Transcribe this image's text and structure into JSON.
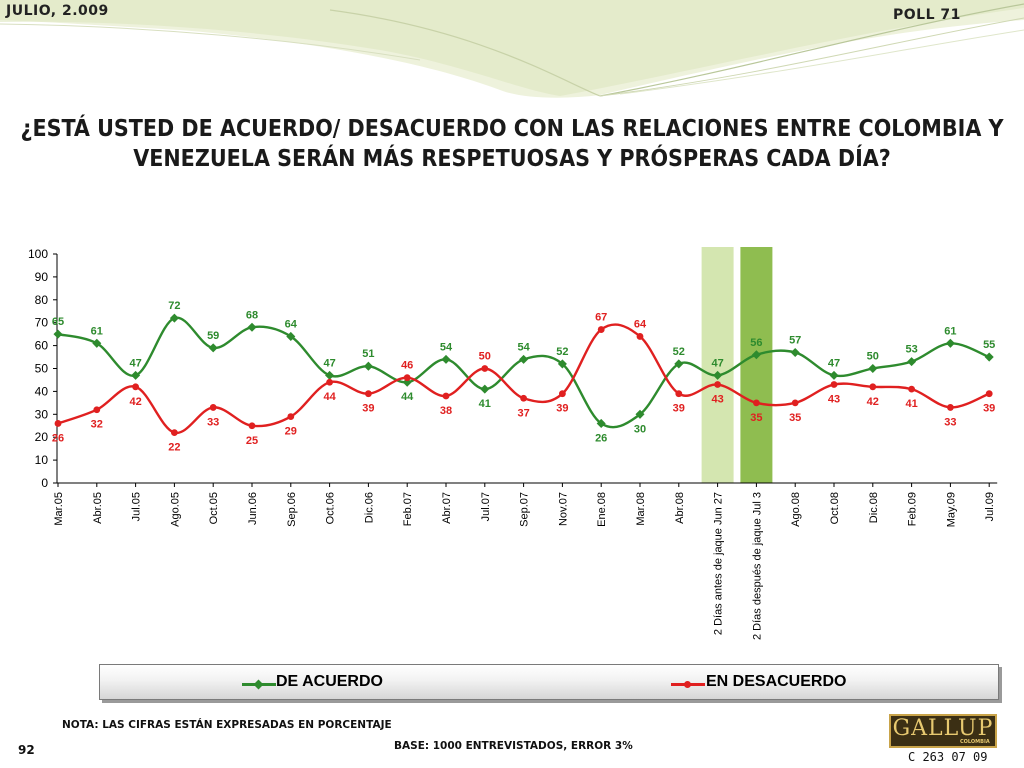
{
  "header": {
    "date": "JULIO, 2.009",
    "poll": "POLL 71"
  },
  "question": {
    "line1": "¿ESTÁ USTED DE ACUERDO/ DESACUERDO CON LAS RELACIONES ENTRE COLOMBIA Y",
    "line2": "VENEZUELA SERÁN MÁS RESPETUOSAS Y PRÓSPERAS CADA DÍA?"
  },
  "colors": {
    "acuerdo": "#2e8b2e",
    "desacuerdo": "#e02020",
    "highlight_light": "#d4e6b0",
    "highlight_dark": "#8fbd50"
  },
  "chart_data": {
    "type": "line",
    "title": "",
    "xlabel": "",
    "ylabel": "",
    "ylim": [
      0,
      100
    ],
    "yticks": [
      0,
      10,
      20,
      30,
      40,
      50,
      60,
      70,
      80,
      90,
      100
    ],
    "grid": false,
    "legend_position": "bottom",
    "categories": [
      "Mar.05",
      "Abr.05",
      "Jul.05",
      "Ago.05",
      "Oct.05",
      "Jun.06",
      "Sep.06",
      "Oct.06",
      "Dic.06",
      "Feb.07",
      "Abr.07",
      "Jul.07",
      "Sep.07",
      "Nov.07",
      "Ene.08",
      "Mar.08",
      "Abr.08",
      "2 Días antes de jaque Jun 27",
      "2 Días después de jaque Jul 3",
      "Ago.08",
      "Oct.08",
      "Dic.08",
      "Feb.09",
      "May.09",
      "Jul.09"
    ],
    "highlighted_categories": [
      "2 Días antes de jaque Jun 27",
      "2 Días después de jaque Jul 3"
    ],
    "series": [
      {
        "name": "DE ACUERDO",
        "color": "#2e8b2e",
        "marker": "diamond",
        "values": [
          65,
          61,
          47,
          72,
          59,
          68,
          64,
          47,
          51,
          44,
          54,
          41,
          54,
          52,
          26,
          30,
          52,
          47,
          56,
          57,
          47,
          50,
          53,
          61,
          55
        ]
      },
      {
        "name": "EN DESACUERDO",
        "color": "#e02020",
        "marker": "circle",
        "values": [
          26,
          32,
          42,
          22,
          33,
          25,
          29,
          44,
          39,
          46,
          38,
          50,
          37,
          39,
          67,
          64,
          39,
          43,
          35,
          35,
          43,
          42,
          41,
          33,
          39
        ]
      }
    ]
  },
  "legend": {
    "acuerdo": "DE ACUERDO",
    "desacuerdo": "EN DESACUERDO"
  },
  "footer": {
    "note": "NOTA: LAS CIFRAS ESTÁN EXPRESADAS EN PORCENTAJE",
    "base": "BASE: 1000 ENTREVISTADOS, ERROR 3%",
    "page": "92",
    "code": "C 263 07 09",
    "logo_text": "GALLUP",
    "logo_sub": "COLOMBIA"
  }
}
